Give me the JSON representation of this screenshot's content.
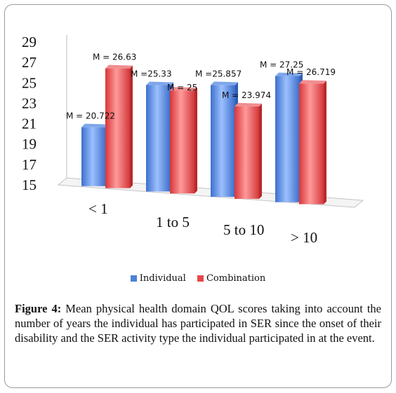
{
  "chart_data": {
    "type": "bar",
    "categories": [
      "< 1",
      "1 to 5",
      "5 to 10",
      "> 10"
    ],
    "series": [
      {
        "name": "Individual",
        "values": [
          20.722,
          25.33,
          25.857,
          27.25
        ],
        "labels": [
          "M = 20.722",
          "M =25.33",
          "M =25.857",
          "M = 27.25"
        ],
        "color": "#4f81d6"
      },
      {
        "name": "Combination",
        "values": [
          26.63,
          25,
          23.974,
          26.719
        ],
        "labels": [
          "M = 26.63",
          "M = 25",
          "M = 23.974",
          "M = 26.719"
        ],
        "color": "#e8474a"
      }
    ],
    "yticks": [
      15,
      17,
      19,
      21,
      23,
      25,
      27,
      29
    ],
    "ylim": [
      15,
      29
    ],
    "legend_position": "bottom",
    "grid": false,
    "style": "3d"
  },
  "caption": {
    "label": "Figure 4:",
    "text": " Mean physical health domain QOL scores taking into account the number of years the individual has participated in SER since the onset of their disability and the SER activity type the individual participated in at the event."
  }
}
